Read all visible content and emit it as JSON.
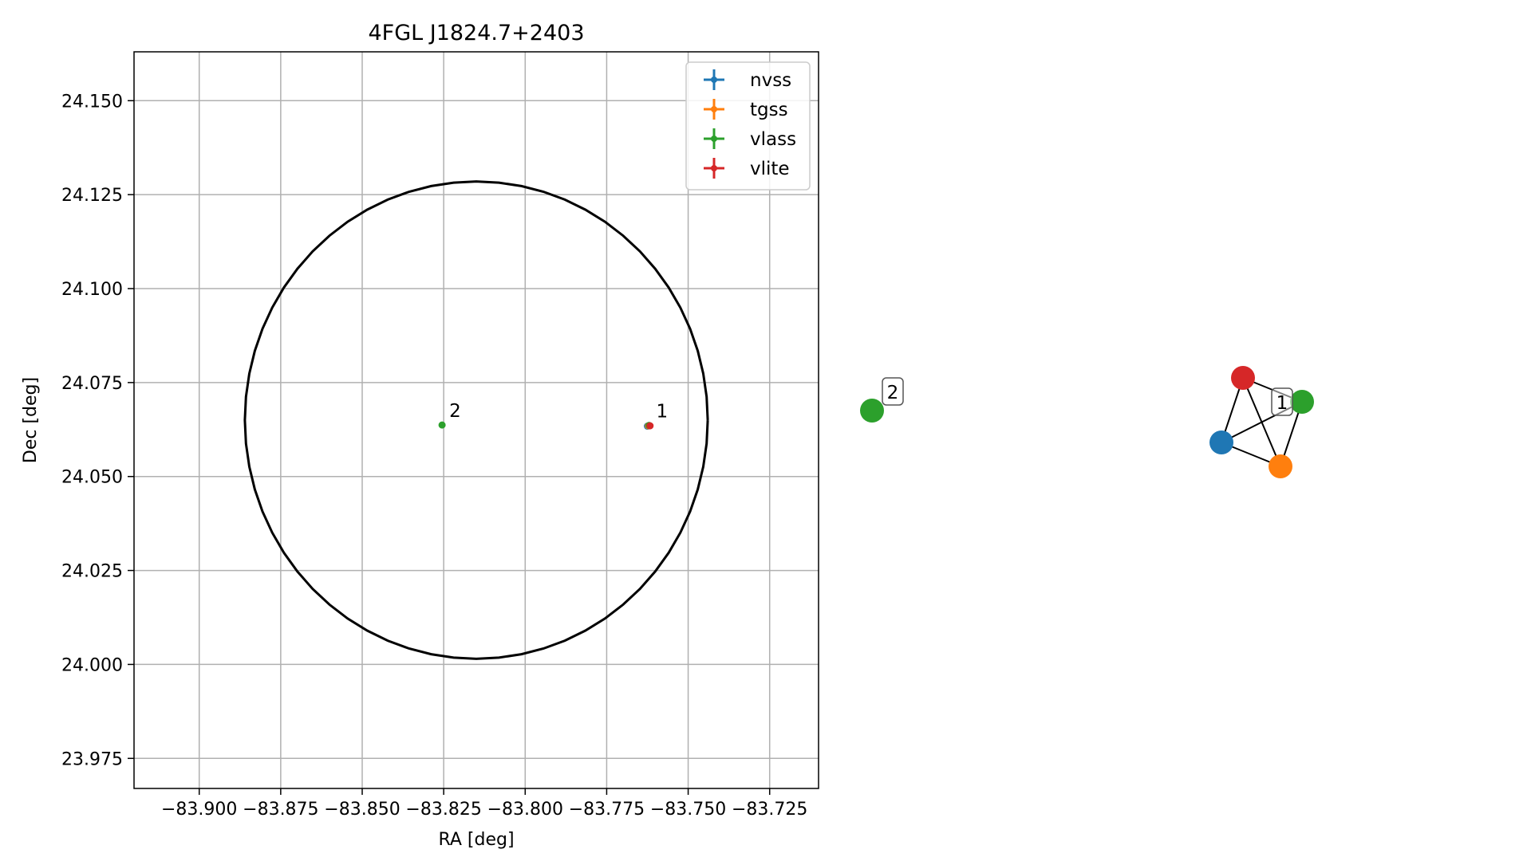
{
  "chart_data": [
    {
      "type": "scatter",
      "title": "4FGL J1824.7+2403",
      "xlabel": "RA [deg]",
      "ylabel": "Dec [deg]",
      "xlim": [
        -83.92,
        -83.71
      ],
      "ylim": [
        23.967,
        24.163
      ],
      "grid": true,
      "legend_position": "top-right",
      "xticks": [
        -83.9,
        -83.875,
        -83.85,
        -83.825,
        -83.8,
        -83.775,
        -83.75,
        -83.725
      ],
      "xtick_labels": [
        "−83.900",
        "−83.875",
        "−83.850",
        "−83.825",
        "−83.800",
        "−83.775",
        "−83.750",
        "−83.725"
      ],
      "yticks": [
        23.975,
        24.0,
        24.025,
        24.05,
        24.075,
        24.1,
        24.125,
        24.15
      ],
      "ytick_labels": [
        "23.975",
        "24.000",
        "24.025",
        "24.050",
        "24.075",
        "24.100",
        "24.125",
        "24.150"
      ],
      "circle": {
        "center": [
          -83.815,
          24.065
        ],
        "radius_ra": 0.071,
        "radius_dec": 0.0635
      },
      "series": [
        {
          "name": "nvss",
          "color": "#1f77b4",
          "points": [
            [
              -83.7625,
              24.0634
            ]
          ]
        },
        {
          "name": "tgss",
          "color": "#ff7f0e",
          "points": [
            [
              -83.7622,
              24.0635
            ]
          ]
        },
        {
          "name": "vlass",
          "color": "#2ca02c",
          "points": [
            [
              -83.8255,
              24.0637
            ],
            [
              -83.762,
              24.0636
            ]
          ]
        },
        {
          "name": "vlite",
          "color": "#d62728",
          "points": [
            [
              -83.7617,
              24.0635
            ]
          ]
        }
      ],
      "annotations": [
        {
          "text": "2",
          "x": -83.8255,
          "y": 24.0637
        },
        {
          "text": "1",
          "x": -83.762,
          "y": 24.0636
        }
      ]
    },
    {
      "type": "network",
      "nodes": [
        {
          "id": "vlass-2",
          "color": "#2ca02c",
          "label": "2"
        },
        {
          "id": "nvss-1",
          "color": "#1f77b4"
        },
        {
          "id": "tgss-1",
          "color": "#ff7f0e"
        },
        {
          "id": "vlass-1",
          "color": "#2ca02c"
        },
        {
          "id": "vlite-1",
          "color": "#d62728"
        }
      ],
      "edges": [
        [
          "vlite-1",
          "nvss-1"
        ],
        [
          "vlite-1",
          "tgss-1"
        ],
        [
          "vlite-1",
          "vlass-1"
        ],
        [
          "nvss-1",
          "tgss-1"
        ],
        [
          "nvss-1",
          "vlass-1"
        ],
        [
          "tgss-1",
          "vlass-1"
        ]
      ],
      "group_labels": [
        "1"
      ]
    }
  ]
}
